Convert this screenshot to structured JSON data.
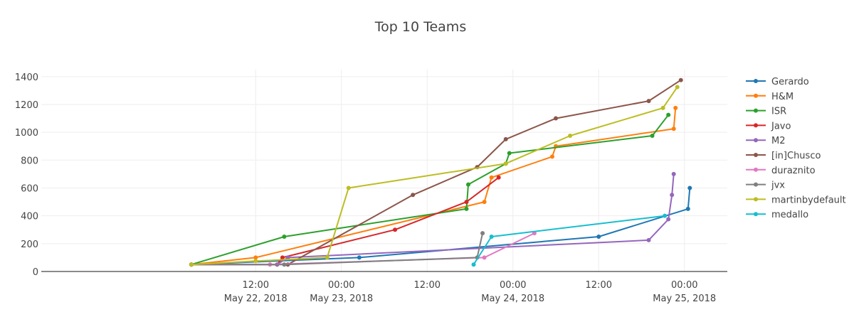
{
  "chart_data": {
    "type": "line",
    "title": "Top 10 Teams",
    "xlabel": "",
    "ylabel": "",
    "x_range": [
      "2018-05-21 06:00",
      "2018-05-25 06:00"
    ],
    "ylim": [
      0,
      1450
    ],
    "grid": true,
    "legend_position": "right",
    "y_ticks": [
      0,
      200,
      400,
      600,
      800,
      1000,
      1200,
      1400
    ],
    "x_ticks": [
      {
        "at": "2018-05-22 12:00",
        "line1": "12:00",
        "line2": "May 22, 2018"
      },
      {
        "at": "2018-05-23 00:00",
        "line1": "00:00",
        "line2": "May 23, 2018"
      },
      {
        "at": "2018-05-23 12:00",
        "line1": "12:00",
        "line2": ""
      },
      {
        "at": "2018-05-24 00:00",
        "line1": "00:00",
        "line2": "May 24, 2018"
      },
      {
        "at": "2018-05-24 12:00",
        "line1": "12:00",
        "line2": ""
      },
      {
        "at": "2018-05-25 00:00",
        "line1": "00:00",
        "line2": "May 25, 2018"
      }
    ],
    "series": [
      {
        "name": "Gerardo",
        "color": "#1f77b4",
        "points": [
          [
            "2018-05-22 03:00",
            50
          ],
          [
            "2018-05-23 02:30",
            100
          ],
          [
            "2018-05-24 12:00",
            250
          ],
          [
            "2018-05-25 00:30",
            450
          ],
          [
            "2018-05-25 00:45",
            600
          ]
        ]
      },
      {
        "name": "H&M",
        "color": "#ff7f0e",
        "points": [
          [
            "2018-05-22 03:00",
            50
          ],
          [
            "2018-05-22 12:00",
            100
          ],
          [
            "2018-05-23 20:00",
            500
          ],
          [
            "2018-05-23 21:00",
            675
          ],
          [
            "2018-05-24 05:30",
            825
          ],
          [
            "2018-05-24 06:00",
            900
          ],
          [
            "2018-05-24 22:30",
            1025
          ],
          [
            "2018-05-24 22:45",
            1175
          ]
        ]
      },
      {
        "name": "ISR",
        "color": "#2ca02c",
        "points": [
          [
            "2018-05-22 03:00",
            50
          ],
          [
            "2018-05-22 16:00",
            250
          ],
          [
            "2018-05-23 17:30",
            450
          ],
          [
            "2018-05-23 17:45",
            625
          ],
          [
            "2018-05-23 23:00",
            775
          ],
          [
            "2018-05-23 23:30",
            850
          ],
          [
            "2018-05-24 19:30",
            975
          ],
          [
            "2018-05-24 21:45",
            1125
          ]
        ]
      },
      {
        "name": "Javo",
        "color": "#d62728",
        "points": [
          [
            "2018-05-22 03:00",
            50
          ],
          [
            "2018-05-22 15:00",
            50
          ],
          [
            "2018-05-22 15:45",
            100
          ],
          [
            "2018-05-23 07:30",
            300
          ],
          [
            "2018-05-23 17:30",
            500
          ],
          [
            "2018-05-23 22:00",
            675
          ]
        ]
      },
      {
        "name": "M2",
        "color": "#9467bd",
        "points": [
          [
            "2018-05-22 03:00",
            50
          ],
          [
            "2018-05-22 15:00",
            50
          ],
          [
            "2018-05-22 16:30",
            100
          ],
          [
            "2018-05-24 19:00",
            225
          ],
          [
            "2018-05-24 21:45",
            375
          ],
          [
            "2018-05-24 22:15",
            550
          ],
          [
            "2018-05-24 22:30",
            700
          ]
        ]
      },
      {
        "name": "[in]Chusco",
        "color": "#8c564b",
        "points": [
          [
            "2018-05-22 16:30",
            50
          ],
          [
            "2018-05-23 10:00",
            550
          ],
          [
            "2018-05-23 19:00",
            750
          ],
          [
            "2018-05-23 23:00",
            950
          ],
          [
            "2018-05-24 06:00",
            1100
          ],
          [
            "2018-05-24 19:00",
            1225
          ],
          [
            "2018-05-24 23:30",
            1375
          ]
        ]
      },
      {
        "name": "duraznito",
        "color": "#e377c2",
        "points": [
          [
            "2018-05-22 03:00",
            50
          ],
          [
            "2018-05-22 14:00",
            50
          ],
          [
            "2018-05-23 20:00",
            100
          ],
          [
            "2018-05-24 03:00",
            275
          ]
        ]
      },
      {
        "name": "jvx",
        "color": "#7f7f7f",
        "points": [
          [
            "2018-05-22 03:00",
            50
          ],
          [
            "2018-05-22 16:00",
            50
          ],
          [
            "2018-05-23 19:00",
            100
          ],
          [
            "2018-05-23 19:45",
            275
          ]
        ]
      },
      {
        "name": "martinbydefault",
        "color": "#bcbd22",
        "points": [
          [
            "2018-05-22 03:00",
            50
          ],
          [
            "2018-05-22 12:00",
            75
          ],
          [
            "2018-05-22 22:00",
            100
          ],
          [
            "2018-05-23 01:00",
            600
          ],
          [
            "2018-05-23 23:00",
            775
          ],
          [
            "2018-05-24 08:00",
            975
          ],
          [
            "2018-05-24 21:00",
            1175
          ],
          [
            "2018-05-24 23:00",
            1325
          ]
        ]
      },
      {
        "name": "medallo",
        "color": "#17becf",
        "points": [
          [
            "2018-05-23 18:30",
            50
          ],
          [
            "2018-05-23 21:00",
            250
          ],
          [
            "2018-05-24 21:15",
            400
          ]
        ]
      }
    ]
  }
}
